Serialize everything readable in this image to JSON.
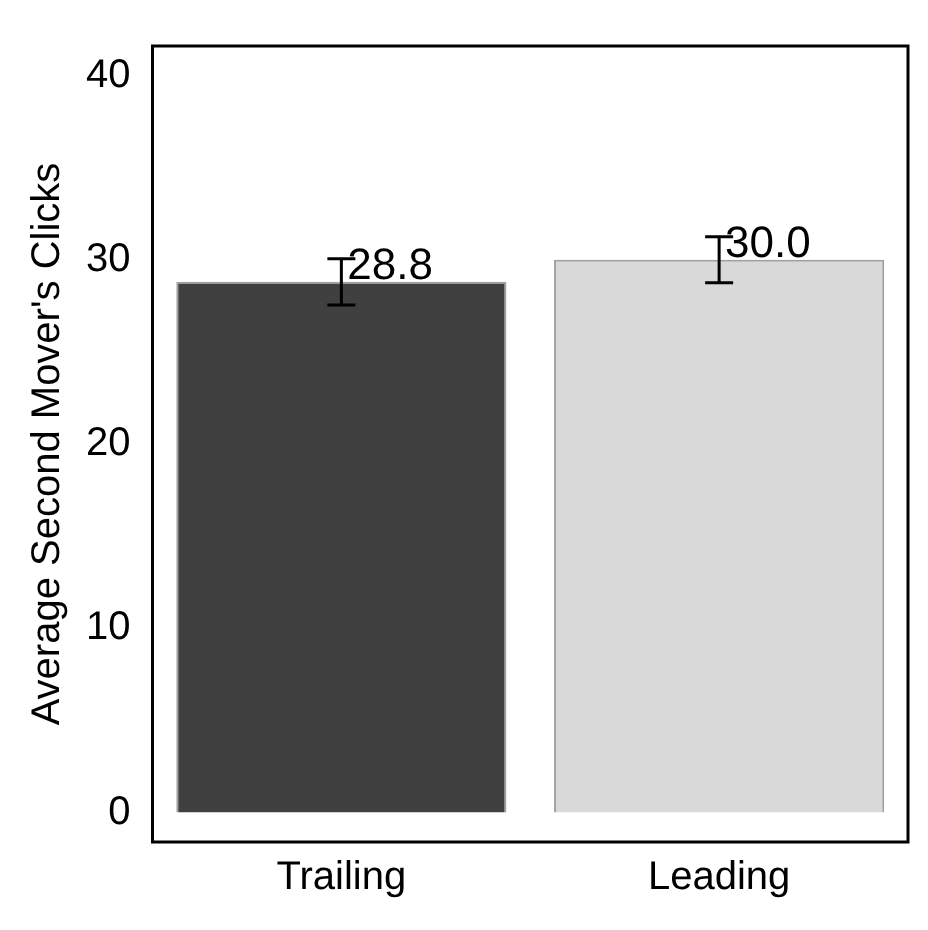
{
  "chart_data": {
    "type": "bar",
    "ylabel": "Average Second Mover's Clicks",
    "categories": [
      "Trailing",
      "Leading"
    ],
    "values": [
      28.8,
      30.0
    ],
    "colors": [
      "#404040",
      "#d9d9d9"
    ],
    "errors": [
      1.25,
      1.25
    ],
    "value_labels": [
      "28.8",
      "30.0"
    ],
    "ylim": [
      -1.6,
      41.6
    ],
    "yticks": [
      0,
      10,
      20,
      30,
      40
    ],
    "grid": false,
    "legend": false
  }
}
